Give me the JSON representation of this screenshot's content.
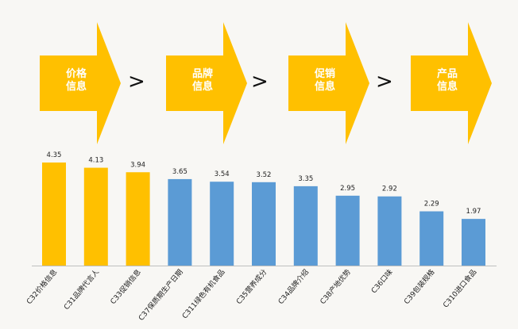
{
  "flow": {
    "steps": [
      {
        "label": "价格\n信息"
      },
      {
        "label": "品牌\n信息"
      },
      {
        "label": "促销\n信息"
      },
      {
        "label": "产品\n信息"
      }
    ],
    "separator": ">",
    "color": "#ffc000"
  },
  "chart_data": {
    "type": "bar",
    "title": "",
    "xlabel": "",
    "ylabel": "",
    "ylim": [
      0,
      5.0
    ],
    "grid": false,
    "categories": [
      "C32价格信息",
      "C31品牌代言人",
      "C33促销信息",
      "C37保质期生产日期",
      "C311绿色有机食品",
      "C35营养成分",
      "C34品牌介绍",
      "C38产地优势",
      "C36口味",
      "C39包装规格",
      "C310进口食品"
    ],
    "values": [
      4.35,
      4.13,
      3.94,
      3.65,
      3.54,
      3.52,
      3.35,
      2.95,
      2.92,
      2.29,
      1.97
    ],
    "value_labels": [
      "4.35",
      "4.13",
      "3.94",
      "3.65",
      "3.54",
      "3.52",
      "3.35",
      "2.95",
      "2.92",
      "2.29",
      "1.97"
    ],
    "colors": {
      "highlight": "#ffc000",
      "default": "#5b9bd5",
      "axis": "#bfbfbf"
    },
    "highlight_count": 3
  }
}
